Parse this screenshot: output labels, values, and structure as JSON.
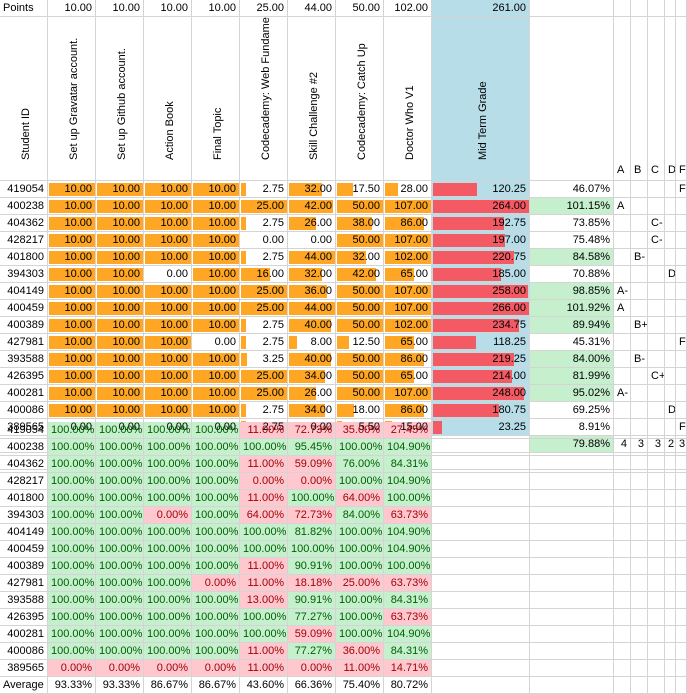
{
  "colors": {
    "orange": "#ffa724",
    "red": "#f45a63",
    "green": "#c6efce",
    "green_text": "#006100",
    "pink": "#ffc7ce",
    "pink_text": "#9c0006",
    "blue": "#b7dde8"
  },
  "labels": {
    "points": "Points",
    "student_id": "Student ID",
    "average": "Average"
  },
  "points": [
    "10.00",
    "10.00",
    "10.00",
    "10.00",
    "25.00",
    "44.00",
    "50.00",
    "102.00",
    "261.00"
  ],
  "headers": [
    "Set up Gravatar account.",
    "Set up Github account.",
    "Action Book",
    "Final Topic",
    "Codecademy: Web Fundamentals",
    "Skill Challenge #2",
    "Codecademy: Catch Up",
    "Doctor Who V1",
    "Mid Term Grade"
  ],
  "grade_headers": [
    "A",
    "B",
    "C",
    "D",
    "F"
  ],
  "students": [
    {
      "id": "419054",
      "scores": [
        "10.00",
        "10.00",
        "10.00",
        "10.00",
        "2.75",
        "32.00",
        "17.50",
        "28.00"
      ],
      "total": "120.25",
      "pct": "46.07%",
      "good": false,
      "grades": [
        "",
        "",
        "",
        "",
        "F"
      ]
    },
    {
      "id": "400238",
      "scores": [
        "10.00",
        "10.00",
        "10.00",
        "10.00",
        "25.00",
        "42.00",
        "50.00",
        "107.00"
      ],
      "total": "264.00",
      "pct": "101.15%",
      "good": true,
      "grades": [
        "A",
        "",
        "",
        "",
        ""
      ]
    },
    {
      "id": "404362",
      "scores": [
        "10.00",
        "10.00",
        "10.00",
        "10.00",
        "2.75",
        "26.00",
        "38.00",
        "86.00"
      ],
      "total": "192.75",
      "pct": "73.85%",
      "good": false,
      "grades": [
        "",
        "",
        "C-",
        "",
        ""
      ]
    },
    {
      "id": "428217",
      "scores": [
        "10.00",
        "10.00",
        "10.00",
        "10.00",
        "0.00",
        "0.00",
        "50.00",
        "107.00"
      ],
      "total": "197.00",
      "pct": "75.48%",
      "good": false,
      "grades": [
        "",
        "",
        "C-",
        "",
        ""
      ]
    },
    {
      "id": "401800",
      "scores": [
        "10.00",
        "10.00",
        "10.00",
        "10.00",
        "2.75",
        "44.00",
        "32.00",
        "102.00"
      ],
      "total": "220.75",
      "pct": "84.58%",
      "good": true,
      "grades": [
        "",
        "B-",
        "",
        "",
        ""
      ]
    },
    {
      "id": "394303",
      "scores": [
        "10.00",
        "10.00",
        "0.00",
        "10.00",
        "16.00",
        "32.00",
        "42.00",
        "65.00"
      ],
      "total": "185.00",
      "pct": "70.88%",
      "good": false,
      "grades": [
        "",
        "",
        "",
        "D+",
        ""
      ]
    },
    {
      "id": "404149",
      "scores": [
        "10.00",
        "10.00",
        "10.00",
        "10.00",
        "25.00",
        "36.00",
        "50.00",
        "107.00"
      ],
      "total": "258.00",
      "pct": "98.85%",
      "good": true,
      "grades": [
        "A-",
        "",
        "",
        "",
        ""
      ]
    },
    {
      "id": "400459",
      "scores": [
        "10.00",
        "10.00",
        "10.00",
        "10.00",
        "25.00",
        "44.00",
        "50.00",
        "107.00"
      ],
      "total": "266.00",
      "pct": "101.92%",
      "good": true,
      "grades": [
        "A",
        "",
        "",
        "",
        ""
      ]
    },
    {
      "id": "400389",
      "scores": [
        "10.00",
        "10.00",
        "10.00",
        "10.00",
        "2.75",
        "40.00",
        "50.00",
        "102.00"
      ],
      "total": "234.75",
      "pct": "89.94%",
      "good": true,
      "grades": [
        "",
        "B+",
        "",
        "",
        ""
      ]
    },
    {
      "id": "427981",
      "scores": [
        "10.00",
        "10.00",
        "10.00",
        "0.00",
        "2.75",
        "8.00",
        "12.50",
        "65.00"
      ],
      "total": "118.25",
      "pct": "45.31%",
      "good": false,
      "grades": [
        "",
        "",
        "",
        "",
        "F"
      ]
    },
    {
      "id": "393588",
      "scores": [
        "10.00",
        "10.00",
        "10.00",
        "10.00",
        "3.25",
        "40.00",
        "50.00",
        "86.00"
      ],
      "total": "219.25",
      "pct": "84.00%",
      "good": true,
      "grades": [
        "",
        "B-",
        "",
        "",
        ""
      ]
    },
    {
      "id": "426395",
      "scores": [
        "10.00",
        "10.00",
        "10.00",
        "10.00",
        "25.00",
        "34.00",
        "50.00",
        "65.00"
      ],
      "total": "214.00",
      "pct": "81.99%",
      "good": true,
      "grades": [
        "",
        "",
        "C+",
        "",
        ""
      ]
    },
    {
      "id": "400281",
      "scores": [
        "10.00",
        "10.00",
        "10.00",
        "10.00",
        "25.00",
        "26.00",
        "50.00",
        "107.00"
      ],
      "total": "248.00",
      "pct": "95.02%",
      "good": true,
      "grades": [
        "A-",
        "",
        "",
        "",
        ""
      ]
    },
    {
      "id": "400086",
      "scores": [
        "10.00",
        "10.00",
        "10.00",
        "10.00",
        "2.75",
        "34.00",
        "18.00",
        "86.00"
      ],
      "total": "180.75",
      "pct": "69.25%",
      "good": false,
      "grades": [
        "",
        "",
        "",
        "D+",
        ""
      ]
    },
    {
      "id": "389565",
      "scores": [
        "0.00",
        "0.00",
        "0.00",
        "0.00",
        "2.75",
        "0.00",
        "5.50",
        "15.00"
      ],
      "total": "23.25",
      "pct": "8.91%",
      "good": false,
      "grades": [
        "",
        "",
        "",
        "",
        "F"
      ]
    }
  ],
  "summary": {
    "class_pct": "79.88%",
    "grade_counts": [
      "4",
      "3",
      "3",
      "2",
      "3"
    ]
  },
  "pct_rows": [
    {
      "id": "419054",
      "vals": [
        "100.00%",
        "100.00%",
        "100.00%",
        "100.00%",
        "11.00%",
        "72.73%",
        "35.00%",
        "27.45%"
      ]
    },
    {
      "id": "400238",
      "vals": [
        "100.00%",
        "100.00%",
        "100.00%",
        "100.00%",
        "100.00%",
        "95.45%",
        "100.00%",
        "104.90%"
      ]
    },
    {
      "id": "404362",
      "vals": [
        "100.00%",
        "100.00%",
        "100.00%",
        "100.00%",
        "11.00%",
        "59.09%",
        "76.00%",
        "84.31%"
      ]
    },
    {
      "id": "428217",
      "vals": [
        "100.00%",
        "100.00%",
        "100.00%",
        "100.00%",
        "0.00%",
        "0.00%",
        "100.00%",
        "104.90%"
      ]
    },
    {
      "id": "401800",
      "vals": [
        "100.00%",
        "100.00%",
        "100.00%",
        "100.00%",
        "11.00%",
        "100.00%",
        "64.00%",
        "100.00%"
      ]
    },
    {
      "id": "394303",
      "vals": [
        "100.00%",
        "100.00%",
        "0.00%",
        "100.00%",
        "64.00%",
        "72.73%",
        "84.00%",
        "63.73%"
      ]
    },
    {
      "id": "404149",
      "vals": [
        "100.00%",
        "100.00%",
        "100.00%",
        "100.00%",
        "100.00%",
        "81.82%",
        "100.00%",
        "104.90%"
      ]
    },
    {
      "id": "400459",
      "vals": [
        "100.00%",
        "100.00%",
        "100.00%",
        "100.00%",
        "100.00%",
        "100.00%",
        "100.00%",
        "104.90%"
      ]
    },
    {
      "id": "400389",
      "vals": [
        "100.00%",
        "100.00%",
        "100.00%",
        "100.00%",
        "11.00%",
        "90.91%",
        "100.00%",
        "100.00%"
      ]
    },
    {
      "id": "427981",
      "vals": [
        "100.00%",
        "100.00%",
        "100.00%",
        "0.00%",
        "11.00%",
        "18.18%",
        "25.00%",
        "63.73%"
      ]
    },
    {
      "id": "393588",
      "vals": [
        "100.00%",
        "100.00%",
        "100.00%",
        "100.00%",
        "13.00%",
        "90.91%",
        "100.00%",
        "84.31%"
      ]
    },
    {
      "id": "426395",
      "vals": [
        "100.00%",
        "100.00%",
        "100.00%",
        "100.00%",
        "100.00%",
        "77.27%",
        "100.00%",
        "63.73%"
      ]
    },
    {
      "id": "400281",
      "vals": [
        "100.00%",
        "100.00%",
        "100.00%",
        "100.00%",
        "100.00%",
        "59.09%",
        "100.00%",
        "104.90%"
      ]
    },
    {
      "id": "400086",
      "vals": [
        "100.00%",
        "100.00%",
        "100.00%",
        "100.00%",
        "11.00%",
        "77.27%",
        "36.00%",
        "84.31%"
      ]
    },
    {
      "id": "389565",
      "vals": [
        "0.00%",
        "0.00%",
        "0.00%",
        "0.00%",
        "11.00%",
        "0.00%",
        "11.00%",
        "14.71%"
      ]
    }
  ],
  "averages": [
    "93.33%",
    "93.33%",
    "86.67%",
    "86.67%",
    "43.60%",
    "66.36%",
    "75.40%",
    "80.72%"
  ]
}
